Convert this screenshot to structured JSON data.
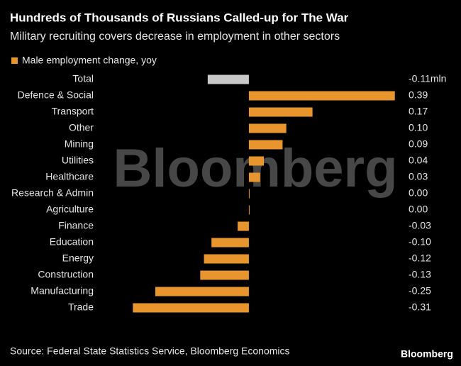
{
  "chart_data": {
    "type": "bar",
    "orientation": "horizontal",
    "title": "Hundreds of Thousands of Russians Called-up for The War",
    "subtitle": "Military recruiting covers decrease in employment in other sectors",
    "categories": [
      "Total",
      "Defence & Social",
      "Transport",
      "Other",
      "Mining",
      "Utilities",
      "Healthcare",
      "Research & Admin",
      "Agriculture",
      "Finance",
      "Education",
      "Energy",
      "Construction",
      "Manufacturing",
      "Trade"
    ],
    "series": [
      {
        "name": "Male employment change, yoy",
        "color": "#e8952e",
        "values": [
          -0.11,
          0.39,
          0.17,
          0.1,
          0.09,
          0.04,
          0.03,
          0.0,
          0.0,
          -0.03,
          -0.1,
          -0.12,
          -0.13,
          -0.25,
          -0.31
        ],
        "value_labels": [
          "-0.11mln",
          "0.39",
          "0.17",
          "0.10",
          "0.09",
          "0.04",
          "0.03",
          "0.00",
          "0.00",
          "-0.03",
          "-0.10",
          "-0.12",
          "-0.13",
          "-0.25",
          "-0.31"
        ],
        "colors": [
          "#c8c8c8",
          "#e8952e",
          "#e8952e",
          "#e8952e",
          "#e8952e",
          "#e8952e",
          "#e8952e",
          "#e8952e",
          "#e8952e",
          "#e8952e",
          "#e8952e",
          "#e8952e",
          "#e8952e",
          "#e8952e",
          "#e8952e"
        ]
      }
    ],
    "xlim": [
      -0.34,
      0.4
    ],
    "source": "Source: Federal State Statistics Service, Bloomberg Economics",
    "watermark": "Bloomberg",
    "logo": "Bloomberg"
  }
}
